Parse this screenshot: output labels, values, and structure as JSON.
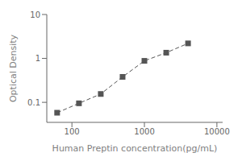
{
  "chart_data": {
    "type": "line",
    "xlabel": "Human Preptin concentration(pg/mL)",
    "ylabel": "Optical Density",
    "x": [
      62.5,
      125,
      250,
      500,
      1000,
      2000,
      4000
    ],
    "values": [
      0.058,
      0.095,
      0.155,
      0.38,
      0.88,
      1.35,
      2.2
    ],
    "xlim": [
      45,
      12000
    ],
    "ylim": [
      0.035,
      10
    ],
    "xticks": [
      100,
      1000,
      10000
    ],
    "yticks": [
      0.1,
      1,
      10
    ],
    "log": true,
    "color": "#555555",
    "marker": "square",
    "line_style": "dashed",
    "grid": false
  }
}
